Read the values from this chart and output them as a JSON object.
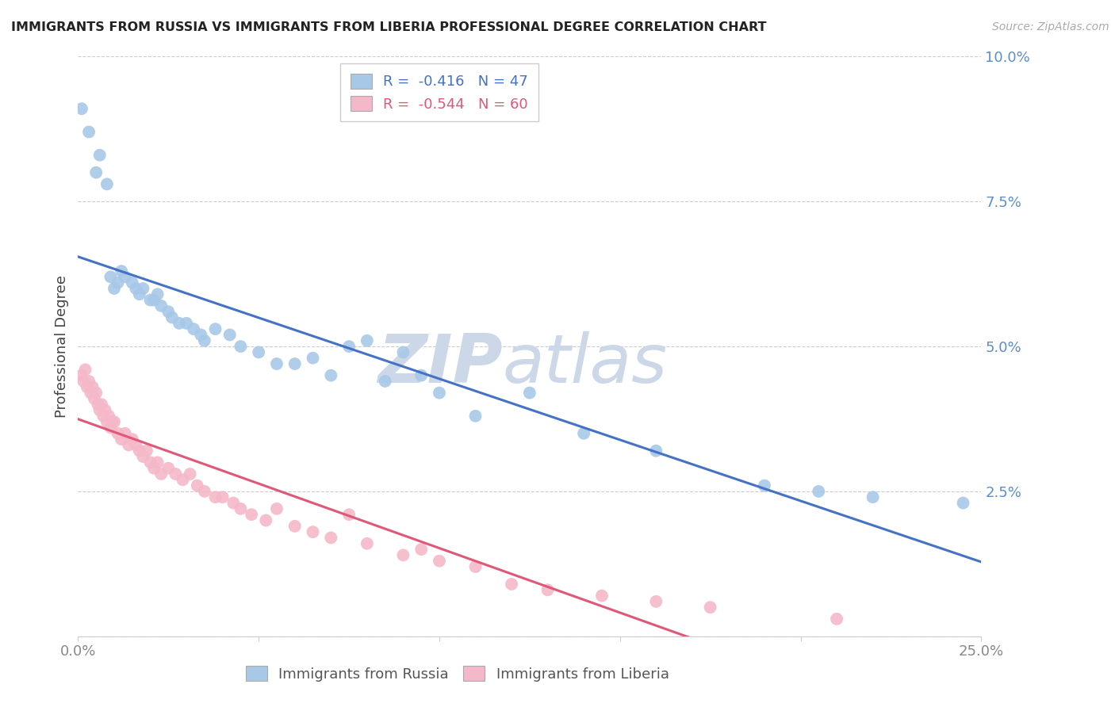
{
  "title": "IMMIGRANTS FROM RUSSIA VS IMMIGRANTS FROM LIBERIA PROFESSIONAL DEGREE CORRELATION CHART",
  "source_text": "Source: ZipAtlas.com",
  "xlim": [
    0.0,
    25.0
  ],
  "ylim": [
    0.0,
    10.0
  ],
  "ylabel": "Professional Degree",
  "russia_R": -0.416,
  "russia_N": 47,
  "liberia_R": -0.544,
  "liberia_N": 60,
  "russia_color": "#a8c8e8",
  "liberia_color": "#f4b8c8",
  "russia_line_color": "#4472c4",
  "liberia_line_color": "#e05878",
  "watermark_color": "#ccd8e8",
  "russia_x": [
    0.1,
    0.3,
    0.5,
    0.6,
    0.8,
    0.9,
    1.0,
    1.1,
    1.2,
    1.3,
    1.5,
    1.6,
    1.7,
    1.8,
    2.0,
    2.1,
    2.2,
    2.3,
    2.5,
    2.6,
    2.8,
    3.0,
    3.2,
    3.4,
    3.5,
    3.8,
    4.2,
    4.5,
    5.0,
    5.5,
    6.0,
    6.5,
    7.0,
    7.5,
    8.0,
    8.5,
    9.0,
    9.5,
    10.0,
    11.0,
    12.5,
    14.0,
    16.0,
    19.0,
    20.5,
    22.0,
    24.5
  ],
  "russia_y": [
    9.1,
    8.7,
    8.0,
    8.3,
    7.8,
    6.2,
    6.0,
    6.1,
    6.3,
    6.2,
    6.1,
    6.0,
    5.9,
    6.0,
    5.8,
    5.8,
    5.9,
    5.7,
    5.6,
    5.5,
    5.4,
    5.4,
    5.3,
    5.2,
    5.1,
    5.3,
    5.2,
    5.0,
    4.9,
    4.7,
    4.7,
    4.8,
    4.5,
    5.0,
    5.1,
    4.4,
    4.9,
    4.5,
    4.2,
    3.8,
    4.2,
    3.5,
    3.2,
    2.6,
    2.5,
    2.4,
    2.3
  ],
  "liberia_x": [
    0.1,
    0.15,
    0.2,
    0.25,
    0.3,
    0.35,
    0.4,
    0.45,
    0.5,
    0.55,
    0.6,
    0.65,
    0.7,
    0.75,
    0.8,
    0.85,
    0.9,
    0.95,
    1.0,
    1.1,
    1.2,
    1.3,
    1.4,
    1.5,
    1.6,
    1.7,
    1.8,
    1.9,
    2.0,
    2.1,
    2.2,
    2.3,
    2.5,
    2.7,
    2.9,
    3.1,
    3.3,
    3.5,
    3.8,
    4.0,
    4.3,
    4.5,
    4.8,
    5.2,
    5.5,
    6.0,
    6.5,
    7.0,
    7.5,
    8.0,
    9.0,
    9.5,
    10.0,
    11.0,
    12.0,
    13.0,
    14.5,
    16.0,
    17.5,
    21.0
  ],
  "liberia_y": [
    4.5,
    4.4,
    4.6,
    4.3,
    4.4,
    4.2,
    4.3,
    4.1,
    4.2,
    4.0,
    3.9,
    4.0,
    3.8,
    3.9,
    3.7,
    3.8,
    3.6,
    3.7,
    3.7,
    3.5,
    3.4,
    3.5,
    3.3,
    3.4,
    3.3,
    3.2,
    3.1,
    3.2,
    3.0,
    2.9,
    3.0,
    2.8,
    2.9,
    2.8,
    2.7,
    2.8,
    2.6,
    2.5,
    2.4,
    2.4,
    2.3,
    2.2,
    2.1,
    2.0,
    2.2,
    1.9,
    1.8,
    1.7,
    2.1,
    1.6,
    1.4,
    1.5,
    1.3,
    1.2,
    0.9,
    0.8,
    0.7,
    0.6,
    0.5,
    0.3
  ]
}
